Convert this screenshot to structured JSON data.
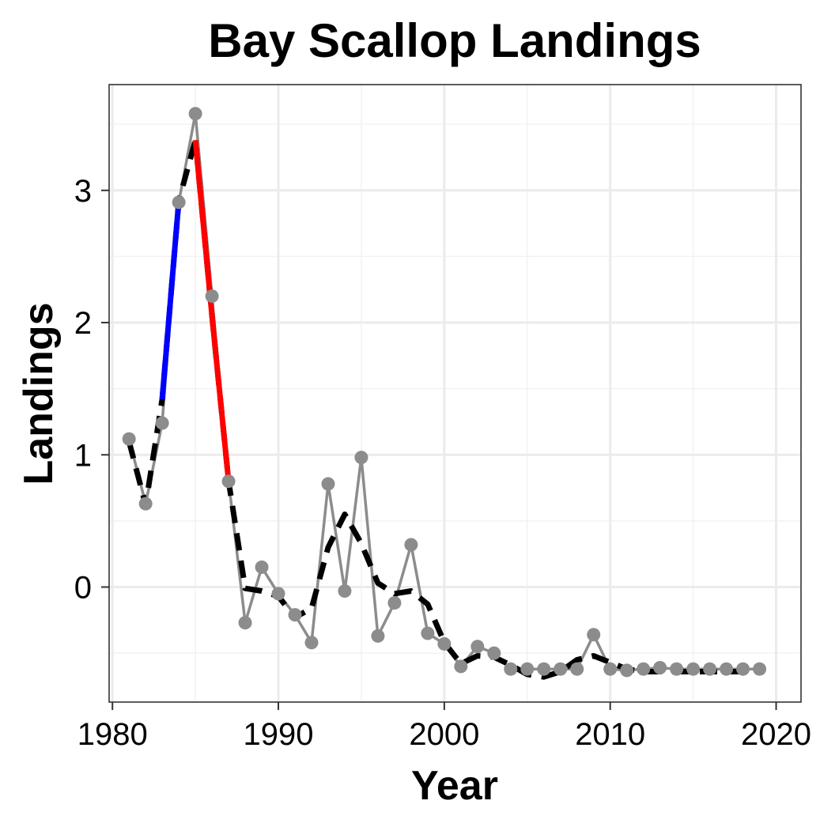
{
  "chart_data": {
    "type": "line",
    "title": "Bay Scallop Landings",
    "xlabel": "Year",
    "ylabel": "Landings",
    "xlim": [
      1979.8,
      2021.5
    ],
    "ylim": [
      -0.87,
      3.8
    ],
    "x_ticks": [
      1980,
      1990,
      2000,
      2010,
      2020
    ],
    "y_ticks": [
      0,
      1,
      2,
      3
    ],
    "grid": true,
    "colors": {
      "observed": "#8c8c8c",
      "trend": "#000000",
      "increase": "#0000ff",
      "decrease": "#ff0000"
    },
    "series": [
      {
        "style": "grey line with points",
        "x": [
          1981,
          1982,
          1983,
          1984,
          1985,
          1986,
          1987,
          1988,
          1989,
          1990,
          1991,
          1992,
          1993,
          1994,
          1995,
          1996,
          1997,
          1998,
          1999,
          2000,
          2001,
          2002,
          2003,
          2004,
          2005,
          2006,
          2007,
          2008,
          2009,
          2010,
          2011,
          2012,
          2013,
          2014,
          2015,
          2016,
          2017,
          2018,
          2019
        ],
        "y": [
          1.12,
          0.63,
          1.24,
          2.91,
          3.58,
          2.2,
          0.8,
          -0.27,
          0.15,
          -0.05,
          -0.21,
          -0.42,
          0.78,
          -0.03,
          0.98,
          -0.37,
          -0.12,
          0.32,
          -0.35,
          -0.43,
          -0.6,
          -0.45,
          -0.5,
          -0.62,
          -0.62,
          -0.62,
          -0.62,
          -0.62,
          -0.36,
          -0.62,
          -0.63,
          -0.62,
          -0.61,
          -0.62,
          -0.62,
          -0.62,
          -0.62,
          -0.62,
          -0.62
        ]
      },
      {
        "style": "black dashed trend",
        "x": [
          1981,
          1982,
          1983,
          1984,
          1985,
          1986,
          1987,
          1988,
          1989,
          1990,
          1991,
          1992,
          1993,
          1994,
          1995,
          1996,
          1997,
          1998,
          1999,
          2000,
          2001,
          2002,
          2003,
          2004,
          2005,
          2006,
          2007,
          2008,
          2009,
          2010,
          2011,
          2012,
          2013,
          2014,
          2015,
          2016,
          2017,
          2018,
          2019
        ],
        "y": [
          1.1,
          0.62,
          1.42,
          2.92,
          3.38,
          2.05,
          0.8,
          -0.01,
          -0.03,
          -0.07,
          -0.23,
          -0.16,
          0.3,
          0.55,
          0.33,
          0.03,
          -0.05,
          -0.03,
          -0.13,
          -0.42,
          -0.58,
          -0.52,
          -0.53,
          -0.59,
          -0.66,
          -0.68,
          -0.64,
          -0.55,
          -0.52,
          -0.57,
          -0.62,
          -0.64,
          -0.64,
          -0.64,
          -0.64,
          -0.64,
          -0.64,
          -0.64,
          -0.63
        ]
      }
    ],
    "highlights": [
      {
        "label": "increase",
        "x": [
          1983,
          1984
        ],
        "y": [
          1.42,
          2.92
        ]
      },
      {
        "label": "decrease",
        "x": [
          1985,
          1986,
          1987
        ],
        "y": [
          3.38,
          2.05,
          0.8
        ]
      }
    ]
  }
}
